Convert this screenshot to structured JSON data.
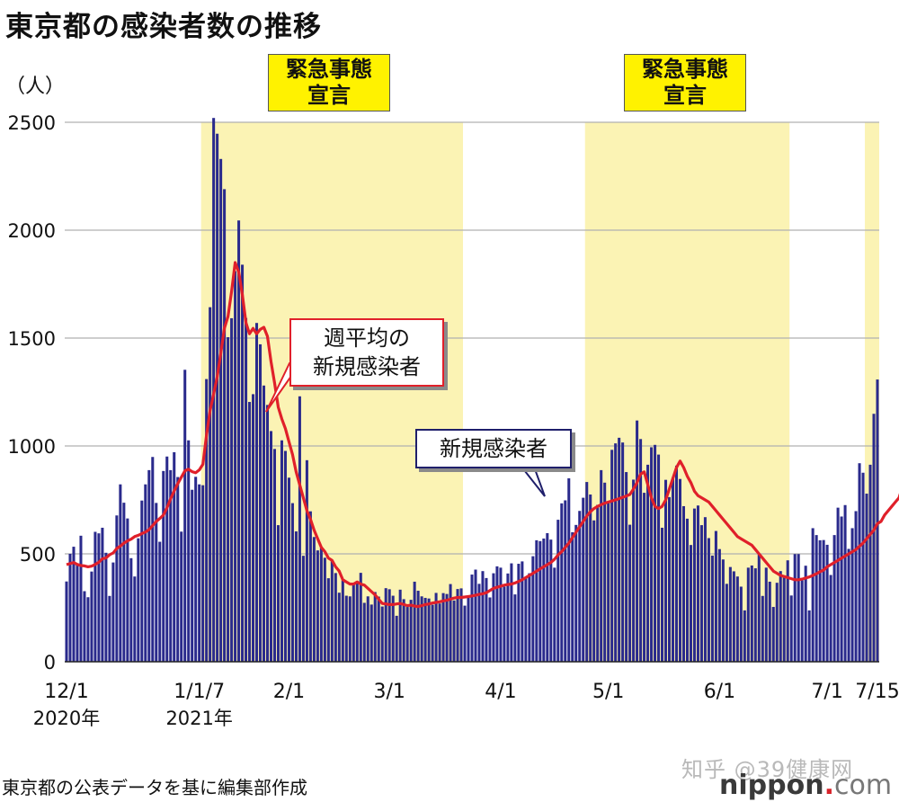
{
  "title": "東京都の感染者数の推移",
  "unit": "（人）",
  "source": "東京都の公表データを基に編集部作成",
  "watermark": "知乎 @39健康网",
  "brand": {
    "main": "nippon",
    "dot": ".",
    "tail": "com"
  },
  "callouts": {
    "avg_line1": "週平均の",
    "avg_line2": "新規感染者",
    "daily": "新規感染者"
  },
  "declarations": [
    {
      "line1": "緊急事態",
      "line2": "宣言"
    },
    {
      "line1": "緊急事態",
      "line2": "宣言"
    }
  ],
  "chart_data": {
    "type": "bar",
    "start_date": "2020-12-01",
    "ylim": [
      0,
      2500
    ],
    "yticks": [
      0,
      500,
      1000,
      1500,
      2000,
      2500
    ],
    "grid": true,
    "xticks": [
      {
        "date": "2020-12-01",
        "label": "12/1",
        "sublabel": "2020年"
      },
      {
        "date": "2021-01-07",
        "label": "1/1/7",
        "sublabel": "2021年"
      },
      {
        "date": "2021-02-01",
        "label": "2/1"
      },
      {
        "date": "2021-03-01",
        "label": "3/1"
      },
      {
        "date": "2021-04-01",
        "label": "4/1"
      },
      {
        "date": "2021-05-01",
        "label": "5/1"
      },
      {
        "date": "2021-06-01",
        "label": "6/1"
      },
      {
        "date": "2021-07-01",
        "label": "7/1"
      },
      {
        "date": "2021-07-15",
        "label": "7/15"
      }
    ],
    "shaded_periods": [
      {
        "start": "2021-01-08",
        "end": "2021-03-21"
      },
      {
        "start": "2021-04-25",
        "end": "2021-06-20"
      },
      {
        "start": "2021-07-12",
        "end": "2021-07-15"
      }
    ],
    "series": [
      {
        "name": "新規感染者",
        "color": "#2a2a8c",
        "values": [
          372,
          500,
          533,
          449,
          584,
          327,
          299,
          418,
          602,
          595,
          621,
          505,
          305,
          460,
          678,
          822,
          737,
          664,
          480,
          395,
          572,
          747,
          822,
          888,
          949,
          736,
          556,
          884,
          951,
          888,
          971,
          856,
          603,
          1353,
          1026,
          797,
          857,
          822,
          818,
          1310,
          1643,
          2520,
          2447,
          2330,
          2190,
          1504,
          1592,
          1810,
          2045,
          1840,
          1593,
          1204,
          1240,
          1570,
          1471,
          1280,
          1190,
          1069,
          986,
          633,
          1026,
          977,
          853,
          735,
          604,
          1230,
          491,
          934,
          697,
          578,
          516,
          528,
          482,
          387,
          470,
          411,
          320,
          377,
          306,
          303,
          364,
          371,
          412,
          273,
          303,
          265,
          323,
          302,
          256,
          341,
          336,
          306,
          213,
          334,
          290,
          254,
          287,
          371,
          329,
          303,
          296,
          293,
          264,
          319,
          270,
          318,
          314,
          360,
          284,
          337,
          340,
          260,
          300,
          404,
          427,
          361,
          420,
          388,
          298,
          410,
          442,
          436,
          348,
          409,
          456,
          312,
          454,
          465,
          390,
          410,
          489,
          563,
          559,
          571,
          596,
          566,
          436,
          658,
          734,
          748,
          850,
          600,
          634,
          699,
          760,
          833,
          775,
          655,
          727,
          888,
          830,
          740,
          982,
          1012,
          1038,
          1016,
          879,
          635,
          844,
          1118,
          1032,
          783,
          913,
          994,
          1005,
          960,
          621,
          843,
          763,
          854,
          909,
          847,
          721,
          663,
          541,
          710,
          724,
          633,
          670,
          573,
          492,
          606,
          522,
          474,
          361,
          439,
          419,
          395,
          348,
          238,
          436,
          446,
          433,
          500,
          305,
          436,
          371,
          254,
          366,
          420,
          393,
          470,
          307,
          499,
          499,
          377,
          445,
          238,
          619,
          587,
          563,
          564,
          542,
          402,
          587,
          714,
          673,
          726,
          523,
          619,
          698,
          920,
          876,
          779,
          913,
          1149,
          1308
        ]
      },
      {
        "name": "週平均の新規感染者",
        "color": "#e0202a",
        "values": [
          450,
          455,
          460,
          451,
          446,
          444,
          440,
          443,
          451,
          461,
          477,
          481,
          496,
          504,
          525,
          536,
          550,
          560,
          568,
          580,
          586,
          594,
          601,
          612,
          631,
          650,
          664,
          680,
          713,
          754,
          791,
          825,
          855,
          885,
          892,
          881,
          876,
          889,
          915,
          1049,
          1162,
          1240,
          1320,
          1430,
          1545,
          1600,
          1716,
          1850,
          1805,
          1700,
          1571,
          1520,
          1545,
          1520,
          1540,
          1550,
          1508,
          1390,
          1290,
          1180,
          1125,
          1080,
          1020,
          960,
          880,
          820,
          760,
          700,
          660,
          610,
          570,
          530,
          510,
          480,
          470,
          440,
          420,
          380,
          370,
          360,
          360,
          370,
          360,
          355,
          340,
          325,
          310,
          290,
          270,
          268,
          265,
          265,
          268,
          270,
          265,
          260,
          262,
          258,
          256,
          260,
          265,
          268,
          272,
          275,
          278,
          282,
          285,
          290,
          295,
          298,
          298,
          300,
          302,
          305,
          308,
          312,
          315,
          320,
          330,
          340,
          345,
          350,
          355,
          358,
          360,
          365,
          372,
          380,
          390,
          400,
          410,
          420,
          430,
          440,
          450,
          460,
          475,
          495,
          510,
          530,
          550,
          575,
          600,
          625,
          650,
          675,
          695,
          710,
          720,
          728,
          735,
          740,
          745,
          750,
          756,
          762,
          768,
          775,
          800,
          830,
          870,
          880,
          820,
          760,
          720,
          710,
          720,
          750,
          800,
          850,
          900,
          930,
          900,
          860,
          830,
          790,
          770,
          760,
          750,
          740,
          720,
          700,
          680,
          660,
          640,
          620,
          600,
          580,
          570,
          560,
          550,
          540,
          520,
          500,
          480,
          460,
          440,
          420,
          410,
          400,
          395,
          390,
          385,
          380,
          380,
          383,
          388,
          393,
          400,
          408,
          417,
          425,
          440,
          450,
          460,
          470,
          480,
          490,
          500,
          510,
          520,
          535,
          550,
          570,
          590,
          610,
          640,
          650,
          680,
          700,
          720,
          740,
          760,
          810,
          870
        ]
      }
    ]
  }
}
